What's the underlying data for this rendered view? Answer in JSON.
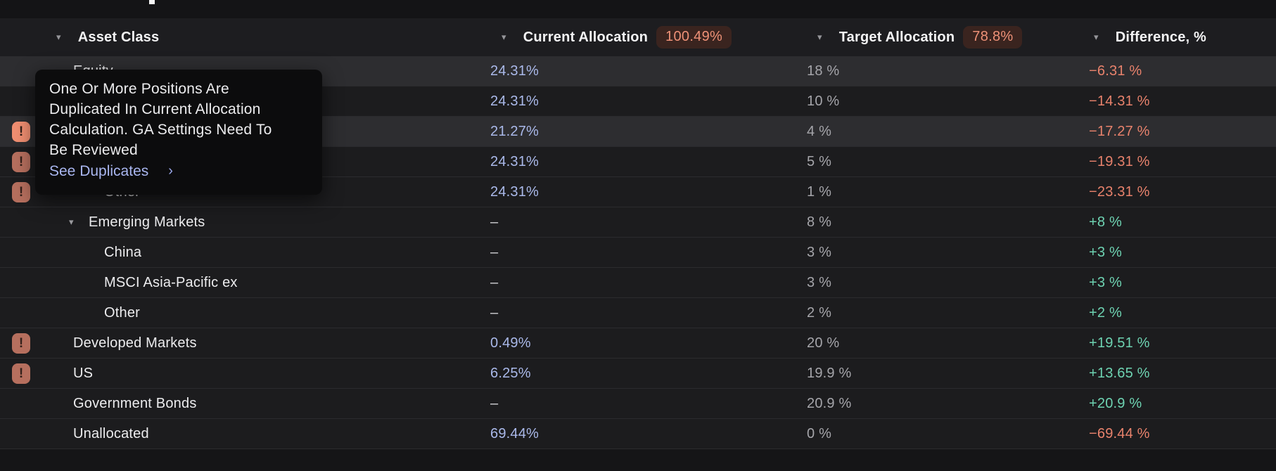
{
  "header": {
    "sort_icon": "▾",
    "columns": [
      {
        "label": "Asset Class",
        "badge": null
      },
      {
        "label": "Current Allocation",
        "badge": "100.49%"
      },
      {
        "label": "Target Allocation",
        "badge": "78.8%"
      },
      {
        "label": "Difference, %",
        "badge": null
      }
    ]
  },
  "tooltip": {
    "lines": [
      "One Or More Positions Are",
      "Duplicated In Current Allocation",
      "Calculation. GA Settings Need To",
      "Be Reviewed"
    ],
    "link_label": "See Duplicates",
    "link_chevron": "›"
  },
  "table": {
    "rows": [
      {
        "name": "Equity",
        "level": 1,
        "expander": false,
        "warning": "none",
        "highlighted": true,
        "current": "24.31%",
        "target": "18 %",
        "diff": "−6.31 %",
        "diff_sign": "negative"
      },
      {
        "name": "",
        "level": 2,
        "expander": false,
        "warning": "none",
        "highlighted": false,
        "current": "24.31%",
        "target": "10 %",
        "diff": "−14.31 %",
        "diff_sign": "negative"
      },
      {
        "name": "",
        "level": 3,
        "expander": false,
        "warning": "bright",
        "highlighted": true,
        "current": "21.27%",
        "target": "4 %",
        "diff": "−17.27 %",
        "diff_sign": "negative"
      },
      {
        "name": "",
        "level": 3,
        "expander": false,
        "warning": "muted",
        "highlighted": false,
        "current": "24.31%",
        "target": "5 %",
        "diff": "−19.31 %",
        "diff_sign": "negative"
      },
      {
        "name": "Other",
        "level": 3,
        "expander": false,
        "warning": "muted",
        "highlighted": false,
        "current": "24.31%",
        "target": "1 %",
        "diff": "−23.31 %",
        "diff_sign": "negative"
      },
      {
        "name": "Emerging Markets",
        "level": 2,
        "expander": true,
        "warning": "none",
        "highlighted": false,
        "current": "–",
        "target": "8 %",
        "diff": "+8 %",
        "diff_sign": "positive"
      },
      {
        "name": "China",
        "level": 3,
        "expander": false,
        "warning": "none",
        "highlighted": false,
        "current": "–",
        "target": "3 %",
        "diff": "+3 %",
        "diff_sign": "positive"
      },
      {
        "name": "MSCI Asia-Pacific ex",
        "level": 3,
        "expander": false,
        "warning": "none",
        "highlighted": false,
        "current": "–",
        "target": "3 %",
        "diff": "+3 %",
        "diff_sign": "positive"
      },
      {
        "name": "Other",
        "level": 3,
        "expander": false,
        "warning": "none",
        "highlighted": false,
        "current": "–",
        "target": "2 %",
        "diff": "+2 %",
        "diff_sign": "positive"
      },
      {
        "name": "Developed Markets",
        "level": 1,
        "expander": false,
        "warning": "muted",
        "highlighted": false,
        "current": "0.49%",
        "target": "20 %",
        "diff": "+19.51 %",
        "diff_sign": "positive"
      },
      {
        "name": "US",
        "level": 1,
        "expander": false,
        "warning": "muted",
        "highlighted": false,
        "current": "6.25%",
        "target": "19.9 %",
        "diff": "+13.65 %",
        "diff_sign": "positive"
      },
      {
        "name": "Government Bonds",
        "level": 1,
        "expander": false,
        "warning": "none",
        "highlighted": false,
        "current": "–",
        "target": "20.9 %",
        "diff": "+20.9 %",
        "diff_sign": "positive"
      },
      {
        "name": "Unallocated",
        "level": 1,
        "expander": false,
        "warning": "none",
        "highlighted": false,
        "current": "69.44%",
        "target": "0 %",
        "diff": "−69.44 %",
        "diff_sign": "negative"
      }
    ]
  },
  "colors": {
    "background": "#1c1c1e",
    "row_highlight": "#2d2d30",
    "current_value": "#aab9ea",
    "target_value": "#a5a5aa",
    "diff_negative": "#e8826c",
    "diff_positive": "#6ed3b2",
    "badge_bg": "#3a241f",
    "badge_text": "#ee9177",
    "warning_icon": "#b66f5e",
    "warning_icon_active": "#f08e71",
    "tooltip_bg": "#0c0c0d",
    "tooltip_link": "#a9b6ef"
  }
}
